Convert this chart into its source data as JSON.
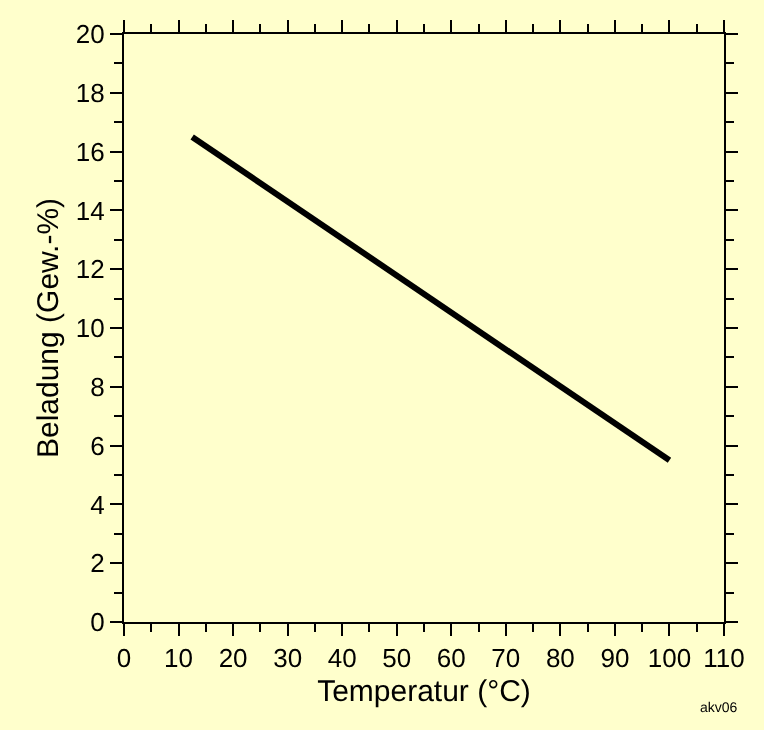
{
  "chart_data": {
    "type": "line",
    "xlabel": "Temperatur (°C)",
    "ylabel": "Beladung (Gew.-%)",
    "x": [
      12.5,
      100
    ],
    "series": [
      {
        "color": "#000000",
        "values": [
          16.5,
          5.5
        ]
      }
    ],
    "xlim": [
      0,
      110
    ],
    "ylim": [
      0,
      20
    ],
    "xticks": [
      0,
      {
        "value": 5,
        "label": null
      },
      10,
      {
        "value": 15,
        "label": null
      },
      20,
      {
        "value": 25,
        "label": null
      },
      30,
      {
        "value": 35,
        "label": null
      },
      40,
      {
        "value": 45,
        "label": null
      },
      50,
      {
        "value": 55,
        "label": null
      },
      60,
      {
        "value": 65,
        "label": null
      },
      70,
      {
        "value": 75,
        "label": null
      },
      80,
      {
        "value": 85,
        "label": null
      },
      90,
      {
        "value": 95,
        "label": null
      },
      100,
      {
        "value": 105,
        "label": null
      },
      110
    ],
    "yticks": [
      0,
      {
        "value": 1,
        "label": null
      },
      2,
      {
        "value": 3,
        "label": null
      },
      4,
      {
        "value": 5,
        "label": null
      },
      6,
      {
        "value": 7,
        "label": null
      },
      8,
      {
        "value": 9,
        "label": null
      },
      10,
      {
        "value": 11,
        "label": null
      },
      12,
      {
        "value": 13,
        "label": null
      },
      14,
      {
        "value": 15,
        "label": null
      },
      16,
      {
        "value": 17,
        "label": null
      },
      18,
      {
        "value": 19,
        "label": null
      },
      20
    ],
    "line_style": "solid",
    "annotations": [
      "akv06"
    ]
  }
}
